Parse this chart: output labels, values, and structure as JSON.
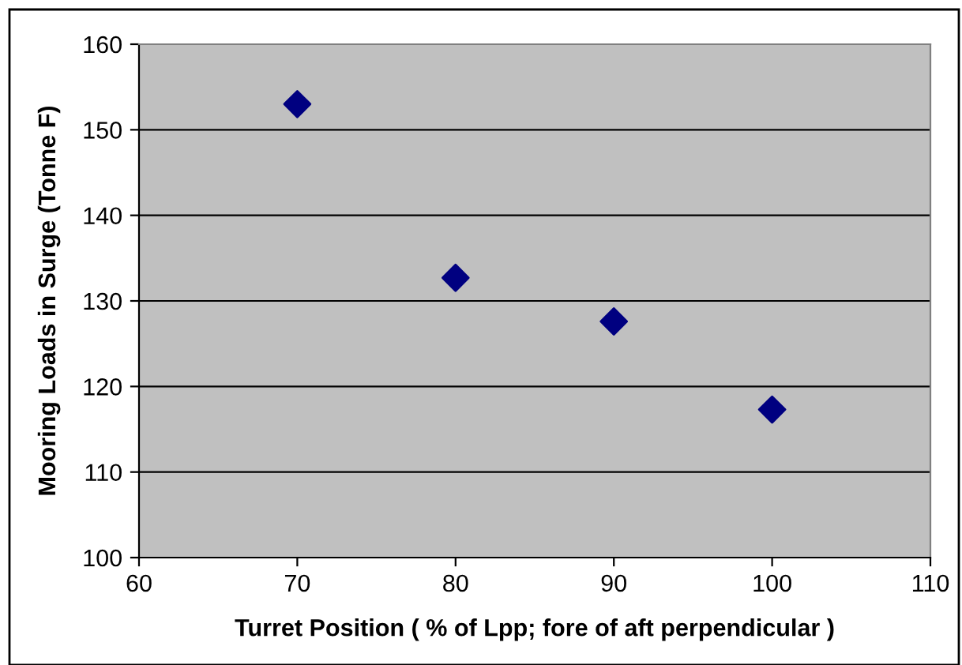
{
  "chart_data": {
    "type": "scatter",
    "xlabel": "Turret Position ( % of Lpp; fore of aft perpendicular )",
    "ylabel": "Mooring Loads in Surge (Tonne F)",
    "x": [
      70,
      80,
      90,
      100
    ],
    "series": [
      {
        "color": "#000080",
        "values": [
          153.0,
          132.7,
          127.6,
          117.3
        ]
      }
    ],
    "xlim": [
      60,
      110
    ],
    "xticks": [
      60,
      70,
      80,
      90,
      100,
      110
    ],
    "ylim": [
      100,
      160
    ],
    "yticks": [
      100,
      110,
      120,
      130,
      140,
      150,
      160
    ],
    "grid": "y",
    "marker": "diamond",
    "legend": false
  }
}
